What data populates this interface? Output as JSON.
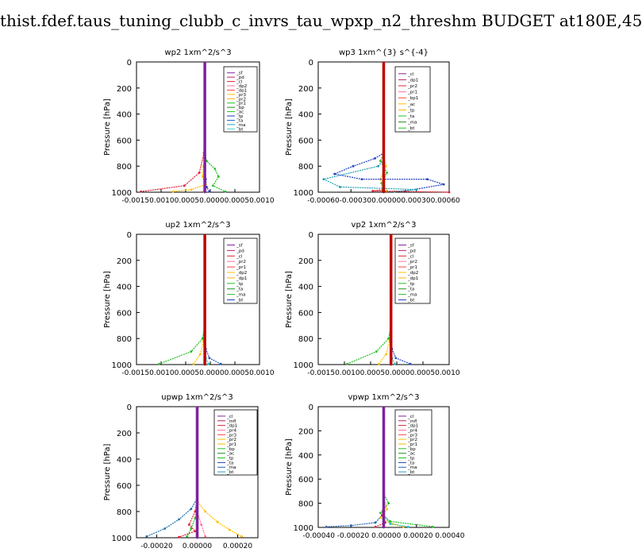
{
  "page_title": "thist.fdef.taus_tuning_clubb_c_invrs_tau_wpxp_n2_threshm  BUDGET at180E,45",
  "chart_data": [
    {
      "type": "line",
      "title": "wp2   1xm^2/s^3",
      "ylabel": "Pressure  [hPa]",
      "xlim": [
        -0.0015,
        0.0012
      ],
      "ylim": [
        1000,
        0
      ],
      "yticks": [
        "0",
        "200",
        "400",
        "600",
        "800",
        "1000"
      ],
      "xticks": [
        "-0.0015",
        "-0.0010",
        "-0.0005",
        "0.0000",
        "0.0005",
        "0.0010"
      ],
      "xtick_text": "-0.00150.00100.00050.00000.00050.0010",
      "legend": [
        "_sf",
        "_pd",
        "_cl",
        "_dp2",
        "_dp1",
        "_pr3",
        "_pr2",
        "_pr1",
        "_bp",
        "_ac",
        "_tp",
        "_ta",
        "_ma",
        "_bt"
      ],
      "series": [
        {
          "name": "_cl",
          "color": "#e0203a",
          "x": [
            0,
            -2e-05,
            -0.00012,
            -0.00045,
            -0.0014
          ],
          "y": [
            0,
            700,
            850,
            950,
            995
          ]
        },
        {
          "name": "_pr1",
          "color": "#20c020",
          "x": [
            0,
            0,
            4e-05,
            0.00022,
            0.0003,
            0.00018,
            0.00045
          ],
          "y": [
            0,
            700,
            760,
            820,
            880,
            950,
            995
          ]
        },
        {
          "name": "_ta",
          "color": "#2040c0",
          "x": [
            0,
            0,
            2e-05,
            4e-05,
            0.0001
          ],
          "y": [
            0,
            800,
            900,
            960,
            995
          ]
        },
        {
          "name": "_pr3",
          "color": "#ffc000",
          "x": [
            0,
            0,
            -3e-05,
            -5e-05,
            2e-05,
            -0.0003,
            -0.0007
          ],
          "y": [
            0,
            740,
            800,
            880,
            940,
            980,
            995
          ]
        },
        {
          "name": "_dp2",
          "color": "#ff70a0",
          "x": [
            0,
            0,
            -2e-05,
            -2e-05
          ],
          "y": [
            0,
            800,
            900,
            995
          ]
        },
        {
          "name": "_ma",
          "color": "#20c0c0",
          "x": [
            0,
            0,
            -1e-05
          ],
          "y": [
            0,
            900,
            995
          ]
        },
        {
          "name": "_sf",
          "color": "#8020a0",
          "x": [
            0,
            0
          ],
          "y": [
            0,
            1000
          ]
        }
      ]
    },
    {
      "type": "line",
      "title": "wp3   1xm^{3} s^{-4}",
      "ylabel": "Pressure  [hPa]",
      "xlim": [
        -0.0006,
        0.0006
      ],
      "ylim": [
        1000,
        0
      ],
      "yticks": [
        "0",
        "200",
        "400",
        "600",
        "800",
        "1000"
      ],
      "xticks": [
        "-0.00060",
        "-0.00030",
        "0.00000",
        "0.00030",
        "0.00060"
      ],
      "xtick_text": "-0.00060-0.000300.000000.000300.00060",
      "legend": [
        "_cl",
        "_dp1",
        "_pr2",
        "_pr1",
        "_bp1",
        "_ac",
        "_tp",
        "_ta",
        "_ma",
        "_bt"
      ],
      "series": [
        {
          "name": "_ac",
          "color": "#20c020",
          "x": [
            0,
            0,
            -3e-05,
            3e-05,
            -2e-05,
            -1e-05
          ],
          "y": [
            0,
            700,
            760,
            850,
            930,
            990
          ]
        },
        {
          "name": "_pr1",
          "color": "#ffc000",
          "x": [
            0,
            0,
            2e-05,
            -3e-05,
            3e-05
          ],
          "y": [
            0,
            720,
            800,
            900,
            990
          ]
        },
        {
          "name": "_tp",
          "color": "#2040c0",
          "x": [
            0,
            0,
            -8e-05,
            -0.00028,
            -0.00045,
            -0.0002,
            0.0004,
            0.00055,
            0.0002
          ],
          "y": [
            0,
            700,
            740,
            800,
            860,
            900,
            900,
            940,
            990
          ]
        },
        {
          "name": "_ma",
          "color": "#20a0b0",
          "x": [
            0,
            0,
            -5e-05,
            -0.00055,
            -0.0004,
            0.0003,
            0.0001
          ],
          "y": [
            0,
            750,
            800,
            900,
            960,
            980,
            995
          ]
        },
        {
          "name": "_dp1",
          "color": "#e02030",
          "x": [
            0,
            0,
            -0.0001,
            0.0006
          ],
          "y": [
            0,
            980,
            990,
            1000
          ]
        },
        {
          "name": "_cl",
          "color": "#c00000",
          "x": [
            0,
            0
          ],
          "y": [
            0,
            1000
          ]
        }
      ]
    },
    {
      "type": "line",
      "title": "up2   1xm^2/s^3",
      "ylabel": "Pressure  [hPa]",
      "xlim": [
        -0.0015,
        0.0012
      ],
      "ylim": [
        1000,
        0
      ],
      "yticks": [
        "0",
        "200",
        "400",
        "600",
        "800",
        "1000"
      ],
      "xticks": [
        "-0.0015",
        "-0.0010",
        "-0.0005",
        "0.0000",
        "0.0005",
        "0.0010"
      ],
      "xtick_text": "-0.00150.00100.00050.00000.00050.0010",
      "legend": [
        "_sf",
        "_pd",
        "_cl",
        "_pr2",
        "_pr1",
        "_dp2",
        "_dp1",
        "_tp",
        "_ta",
        "_ma",
        "_bt"
      ],
      "series": [
        {
          "name": "_dp1",
          "color": "#20c020",
          "x": [
            0,
            0,
            -5e-05,
            -0.0003,
            -0.001
          ],
          "y": [
            0,
            700,
            800,
            900,
            995
          ]
        },
        {
          "name": "_tp",
          "color": "#2050c0",
          "x": [
            0,
            0,
            2e-05,
            0.0001,
            0.00035
          ],
          "y": [
            0,
            800,
            880,
            950,
            995
          ]
        },
        {
          "name": "_pr1",
          "color": "#ffc000",
          "x": [
            0,
            0,
            -3e-05,
            -0.0001,
            -0.00025
          ],
          "y": [
            0,
            720,
            820,
            920,
            995
          ]
        },
        {
          "name": "_ma",
          "color": "#20c0c0",
          "x": [
            0,
            0,
            2e-05,
            8e-05
          ],
          "y": [
            0,
            850,
            950,
            995
          ]
        },
        {
          "name": "_sf",
          "color": "#c00000",
          "x": [
            0,
            0
          ],
          "y": [
            0,
            1000
          ]
        }
      ]
    },
    {
      "type": "line",
      "title": "vp2   1xm^2/s^3",
      "ylabel": "Pressure  [hPa]",
      "xlim": [
        -0.0015,
        0.0012
      ],
      "ylim": [
        1000,
        0
      ],
      "yticks": [
        "0",
        "200",
        "400",
        "600",
        "800",
        "1000"
      ],
      "xticks": [
        "-0.0015",
        "-0.0010",
        "-0.0005",
        "0.0000",
        "0.0005",
        "0.0010"
      ],
      "xtick_text": "-0.00150.00100.00050.00000.00050.0010",
      "legend": [
        "_sf",
        "_pd",
        "_cl",
        "_pr2",
        "_pr1",
        "_dp2",
        "_dp1",
        "_tp",
        "_ta",
        "_ma",
        "_bt"
      ],
      "series": [
        {
          "name": "_dp1",
          "color": "#20c020",
          "x": [
            0,
            0,
            -5e-05,
            -0.0003,
            -0.0009
          ],
          "y": [
            0,
            700,
            800,
            900,
            995
          ]
        },
        {
          "name": "_tp",
          "color": "#2050c0",
          "x": [
            0,
            0,
            2e-05,
            0.0001,
            0.0004
          ],
          "y": [
            0,
            800,
            880,
            950,
            995
          ]
        },
        {
          "name": "_pr1",
          "color": "#ffc000",
          "x": [
            0,
            0,
            -3e-05,
            -0.0001,
            -0.00025
          ],
          "y": [
            0,
            720,
            820,
            920,
            995
          ]
        },
        {
          "name": "_ma",
          "color": "#20c0c0",
          "x": [
            0,
            0,
            2e-05,
            8e-05
          ],
          "y": [
            0,
            850,
            950,
            995
          ]
        },
        {
          "name": "_sf",
          "color": "#c00000",
          "x": [
            0,
            0
          ],
          "y": [
            0,
            1000
          ]
        }
      ]
    },
    {
      "type": "line",
      "title": "upwp   1xm^2/s^3",
      "ylabel": "Pressure  [hPa]",
      "xlim": [
        -0.0003,
        0.0003
      ],
      "ylim": [
        1000,
        0
      ],
      "yticks": [
        "0",
        "200",
        "400",
        "600",
        "800",
        "1000"
      ],
      "xticks": [
        "-0.00020",
        "0.00000",
        "0.00020"
      ],
      "xtick_values": [
        -0.0002,
        0,
        0.0002
      ],
      "legend": [
        "_cl",
        "_mfl",
        "_dp1",
        "_pr4",
        "_pr3",
        "_pr2",
        "_pr1",
        "_bp",
        "_ac",
        "_tp",
        "_ta",
        "_ma",
        "_bt"
      ],
      "series": [
        {
          "name": "_tp",
          "color": "#2070b0",
          "x": [
            0,
            0,
            -3e-05,
            -9e-05,
            -0.00016,
            -0.00025
          ],
          "y": [
            0,
            700,
            780,
            860,
            930,
            990
          ]
        },
        {
          "name": "_pr1",
          "color": "#ffc000",
          "x": [
            0,
            0,
            4e-05,
            0.0001,
            0.00016,
            0.00022
          ],
          "y": [
            0,
            720,
            800,
            880,
            940,
            990
          ]
        },
        {
          "name": "_ac",
          "color": "#20c020",
          "x": [
            0,
            0,
            -1e-05,
            -3e-05,
            -5e-05
          ],
          "y": [
            0,
            760,
            850,
            930,
            990
          ]
        },
        {
          "name": "_pr3",
          "color": "#e02030",
          "x": [
            0,
            0,
            -1e-05,
            -4e-05,
            -1e-05,
            -9e-05
          ],
          "y": [
            0,
            700,
            800,
            900,
            950,
            995
          ]
        },
        {
          "name": "_dp1",
          "color": "#ff70a0",
          "x": [
            0,
            0,
            2e-05,
            4e-05
          ],
          "y": [
            0,
            800,
            900,
            990
          ]
        },
        {
          "name": "_cl",
          "color": "#8020a0",
          "x": [
            0,
            0
          ],
          "y": [
            0,
            1000
          ]
        }
      ]
    },
    {
      "type": "line",
      "title": "vpwp   1xm^2/s^3",
      "ylabel": "Pressure  [hPa]",
      "xlim": [
        -0.0004,
        0.0004
      ],
      "ylim": [
        1000,
        0
      ],
      "yticks": [
        "0",
        "200",
        "400",
        "600",
        "800",
        "1000"
      ],
      "xticks": [
        "-0.00040",
        "-0.00020",
        "0.00000",
        "0.00020",
        "0.00040"
      ],
      "xtick_text": "-0.00040 -0.00020 0.00000 0.00020 0.00040",
      "legend": [
        "_cl",
        "_mfl",
        "_dp1",
        "_pr4",
        "_pr3",
        "_pr2",
        "_pr1",
        "_bp",
        "_ac",
        "_tp",
        "_ta",
        "_ma",
        "_bt"
      ],
      "series": [
        {
          "name": "_tp",
          "color": "#2060b0",
          "x": [
            0,
            0,
            -1e-05,
            -5e-05,
            -0.0002,
            -0.00035
          ],
          "y": [
            0,
            800,
            900,
            960,
            985,
            995
          ]
        },
        {
          "name": "_pr1",
          "color": "#ffc000",
          "x": [
            0,
            0,
            2e-05,
            -2e-05,
            5e-05,
            0.00012
          ],
          "y": [
            0,
            750,
            850,
            920,
            970,
            995
          ]
        },
        {
          "name": "_ac",
          "color": "#20c020",
          "x": [
            0,
            0,
            3e-05,
            -2e-05,
            4e-05,
            0.0003
          ],
          "y": [
            0,
            720,
            800,
            880,
            950,
            995
          ]
        },
        {
          "name": "_pr3",
          "color": "#e02030",
          "x": [
            0,
            0,
            -1e-05,
            1e-05,
            -5e-05
          ],
          "y": [
            0,
            800,
            900,
            960,
            995
          ]
        },
        {
          "name": "_ma",
          "color": "#20c0c0",
          "x": [
            0,
            0,
            4e-05,
            0.00015
          ],
          "y": [
            0,
            900,
            970,
            995
          ]
        },
        {
          "name": "_cl",
          "color": "#8020a0",
          "x": [
            0,
            0
          ],
          "y": [
            0,
            1000
          ]
        }
      ]
    }
  ]
}
